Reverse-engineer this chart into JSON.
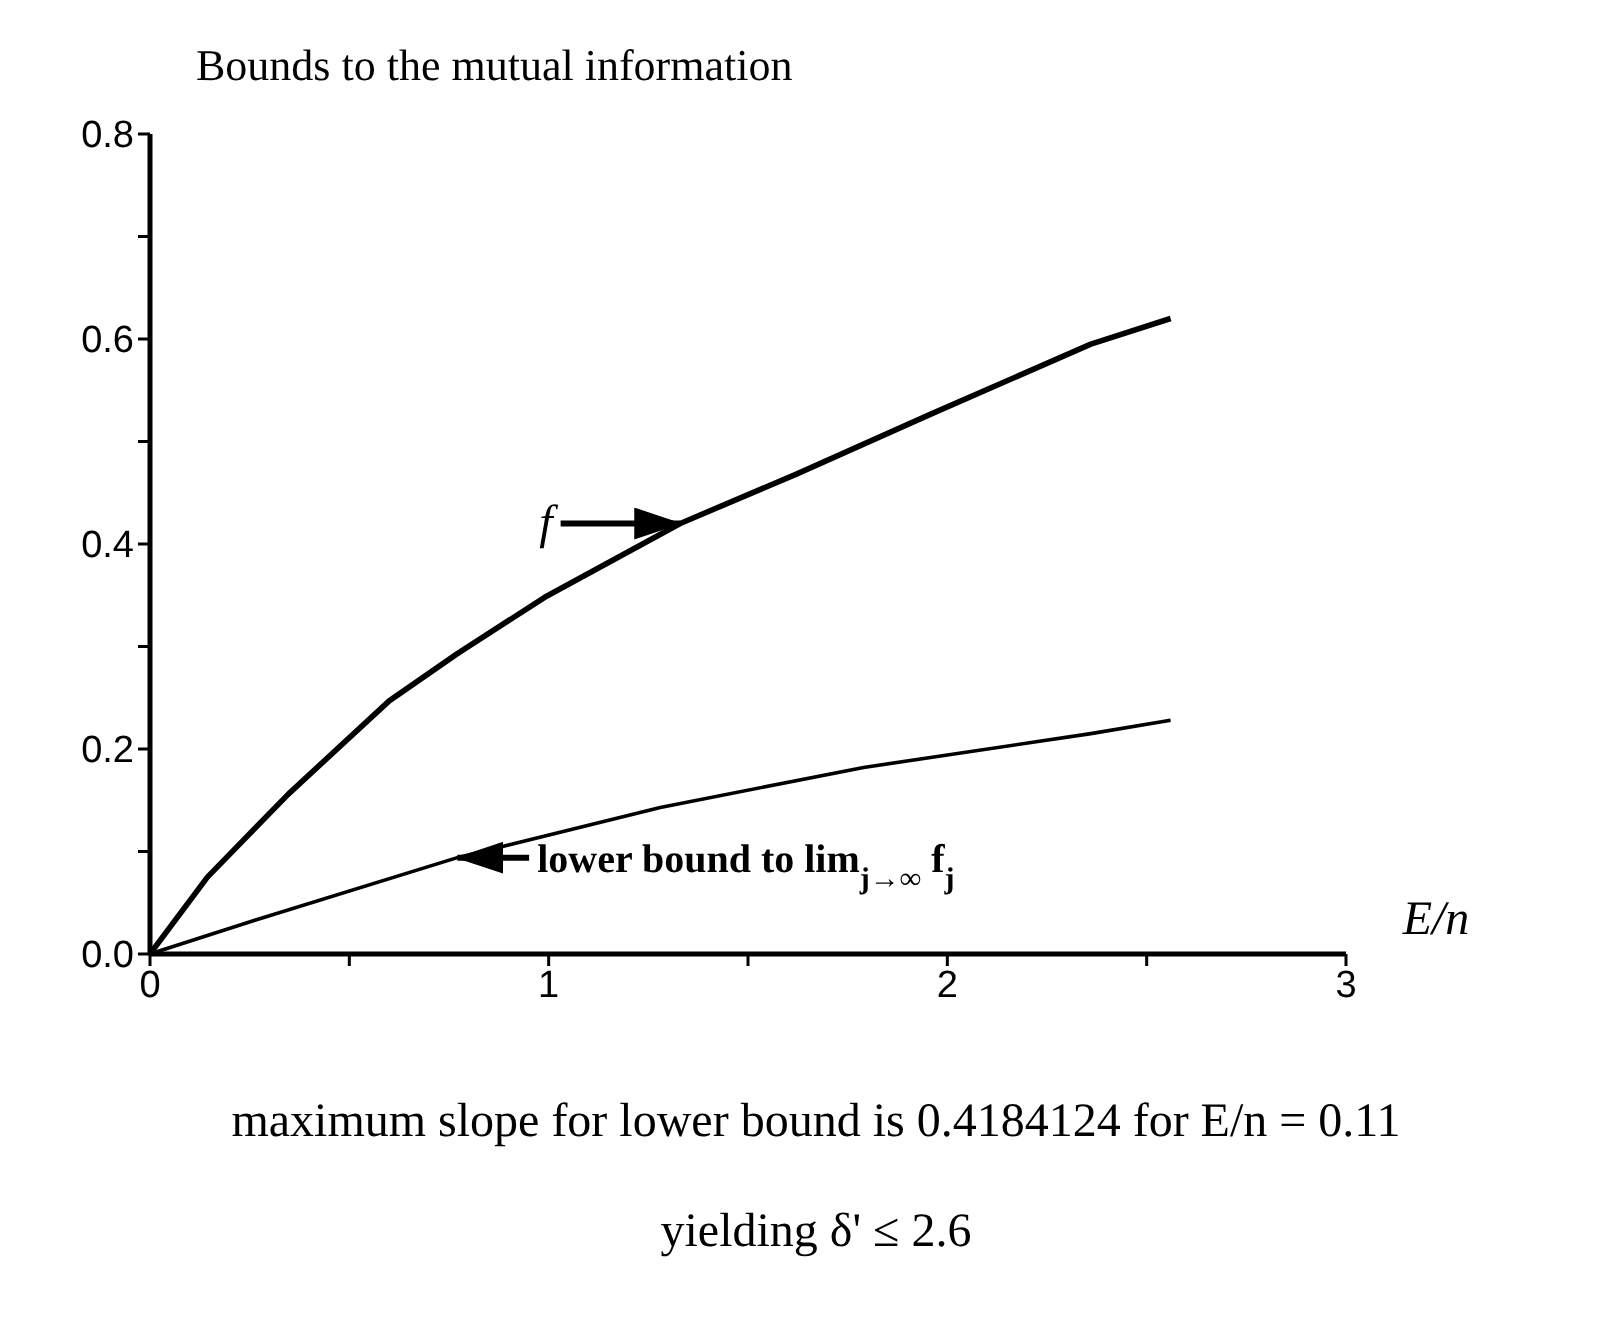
{
  "chart_data": {
    "type": "line",
    "title": "Bounds to the mutual information",
    "xlabel": "E/n",
    "xlim": [
      0,
      3
    ],
    "xticks": [
      0,
      {
        "value": 0.5,
        "label": null
      },
      1,
      {
        "value": 1.5,
        "label": null
      },
      2,
      {
        "value": 2.5,
        "label": null
      },
      3
    ],
    "ylim": [
      0,
      0.8
    ],
    "yticks": [
      {
        "value": 0,
        "label": "0.0"
      },
      {
        "value": 0.1,
        "label": null
      },
      {
        "value": 0.2,
        "label": "0.2"
      },
      {
        "value": 0.3,
        "label": null
      },
      {
        "value": 0.4,
        "label": "0.4"
      },
      {
        "value": 0.5,
        "label": null
      },
      {
        "value": 0.6,
        "label": "0.6"
      },
      {
        "value": 0.7,
        "label": null
      },
      {
        "value": 0.8,
        "label": "0.8"
      }
    ],
    "series": [
      {
        "color": "#000000",
        "x": [
          0,
          0.144,
          0.347,
          0.6,
          0.771,
          0.99,
          1.33,
          1.62,
          1.96,
          2.36,
          2.56
        ],
        "values": [
          0,
          0.075,
          0.156,
          0.247,
          0.293,
          0.348,
          0.42,
          0.468,
          0.527,
          0.595,
          0.62
        ]
      },
      {
        "color": "#000000",
        "x": [
          0,
          0.263,
          0.771,
          1.28,
          1.79,
          2.36,
          2.56
        ],
        "values": [
          0,
          0.033,
          0.094,
          0.143,
          0.182,
          0.215,
          0.228
        ]
      }
    ],
    "annotations": [
      {
        "text": "f",
        "x": 1.33,
        "y": 0.42
      },
      {
        "text": "lower bound to lim$_{j→∞}$ f$_{j}$",
        "x": 0.771,
        "y": 0.094
      },
      "maximum slope for lower bound is 0.4184124 for E/n = 0.11",
      "yielding δ' ≤ 2.6"
    ],
    "grid": false,
    "legend": false,
    "marker": "none",
    "line_style": "solid"
  }
}
